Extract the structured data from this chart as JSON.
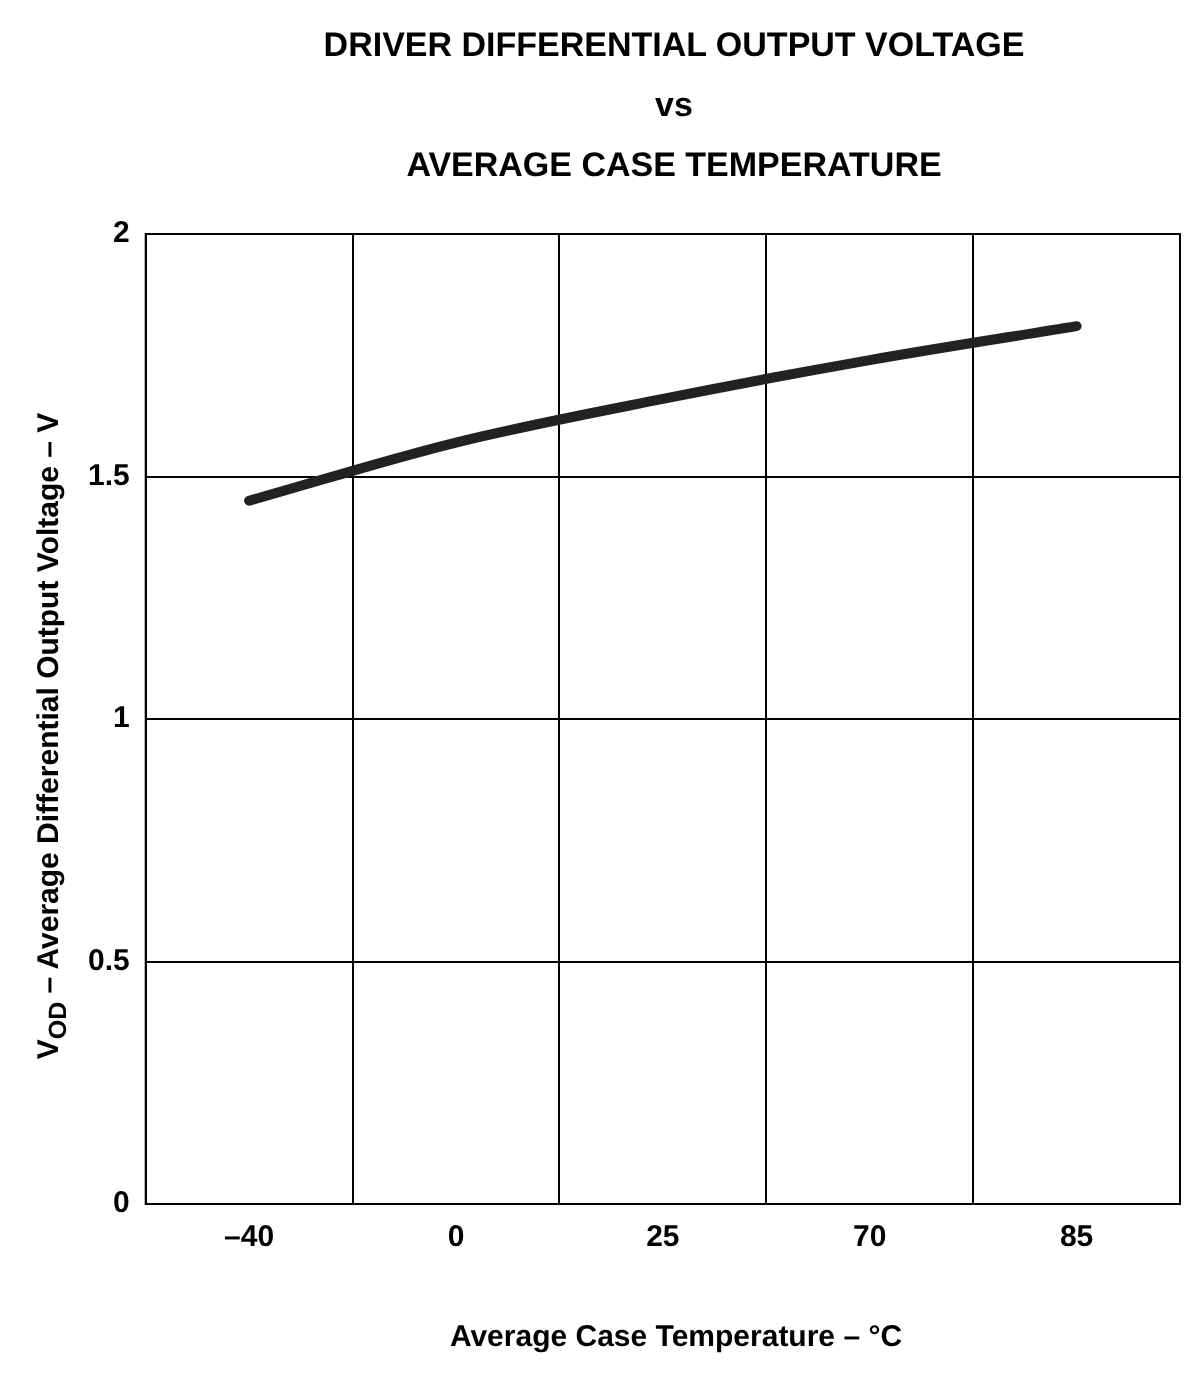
{
  "chart_data": {
    "type": "line",
    "title": "DRIVER DIFFERENTIAL OUTPUT VOLTAGE\nvs\nAVERAGE CASE TEMPERATURE",
    "xlabel": "Average Case Temperature – °C",
    "ylabel": "V$_{OD}$ – Average Differential Output Voltage – V",
    "categories": [
      "–40",
      "0",
      "25",
      "70",
      "85"
    ],
    "series": [
      {
        "color": "#222222",
        "values": [
          1.45,
          1.57,
          1.66,
          1.74,
          1.81
        ]
      }
    ],
    "ylim": [
      0,
      2
    ],
    "yticks": [
      0,
      0.5,
      1,
      1.5,
      2
    ],
    "grid": true,
    "legend": false,
    "marker": "none",
    "line_style": "solid"
  }
}
